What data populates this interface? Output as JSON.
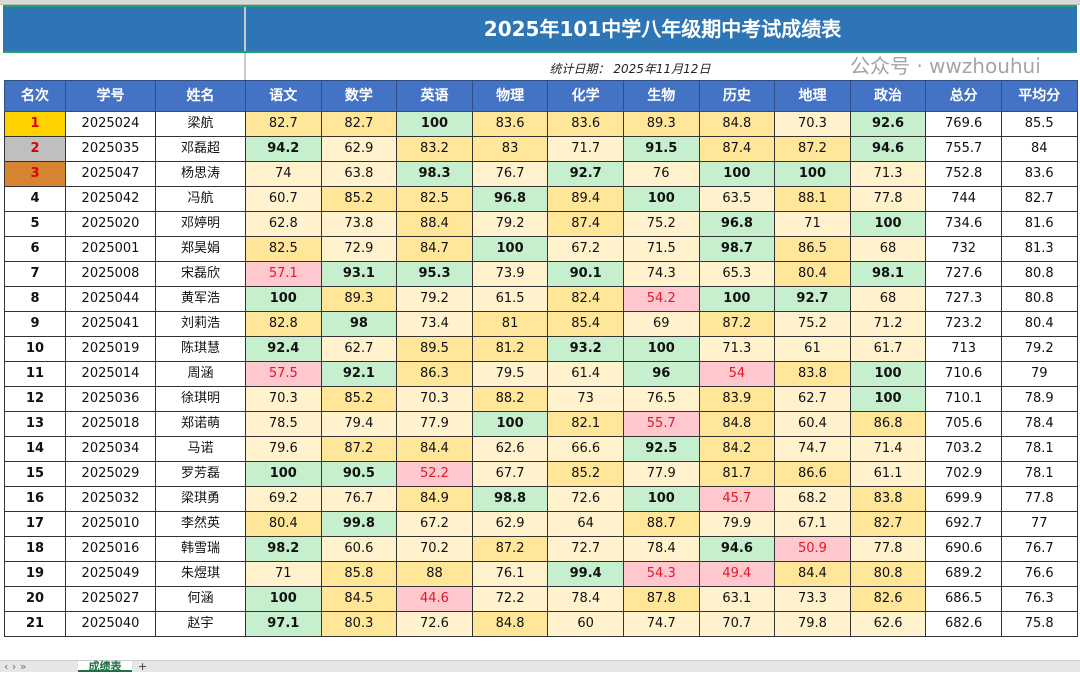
{
  "title": "2025年101中学八年级期中考试成绩表",
  "date_label": "统计日期：  2025年11月12日",
  "headers": [
    "名次",
    "学号",
    "姓名",
    "语文",
    "数学",
    "英语",
    "物理",
    "化学",
    "生物",
    "历史",
    "地理",
    "政治",
    "总分",
    "平均分"
  ],
  "rows": [
    [
      "1",
      "2025024",
      "梁航",
      "82.7",
      "82.7",
      "100",
      "83.6",
      "83.6",
      "89.3",
      "84.8",
      "70.3",
      "92.6",
      "769.6",
      "85.5"
    ],
    [
      "2",
      "2025035",
      "邓磊超",
      "94.2",
      "62.9",
      "83.2",
      "83",
      "71.7",
      "91.5",
      "87.4",
      "87.2",
      "94.6",
      "755.7",
      "84"
    ],
    [
      "3",
      "2025047",
      "杨思涛",
      "74",
      "63.8",
      "98.3",
      "76.7",
      "92.7",
      "76",
      "100",
      "100",
      "71.3",
      "752.8",
      "83.6"
    ],
    [
      "4",
      "2025042",
      "冯航",
      "60.7",
      "85.2",
      "82.5",
      "96.8",
      "89.4",
      "100",
      "63.5",
      "88.1",
      "77.8",
      "744",
      "82.7"
    ],
    [
      "5",
      "2025020",
      "邓婷明",
      "62.8",
      "73.8",
      "88.4",
      "79.2",
      "87.4",
      "75.2",
      "96.8",
      "71",
      "100",
      "734.6",
      "81.6"
    ],
    [
      "6",
      "2025001",
      "郑昊娟",
      "82.5",
      "72.9",
      "84.7",
      "100",
      "67.2",
      "71.5",
      "98.7",
      "86.5",
      "68",
      "732",
      "81.3"
    ],
    [
      "7",
      "2025008",
      "宋磊欣",
      "57.1",
      "93.1",
      "95.3",
      "73.9",
      "90.1",
      "74.3",
      "65.3",
      "80.4",
      "98.1",
      "727.6",
      "80.8"
    ],
    [
      "8",
      "2025044",
      "黄军浩",
      "100",
      "89.3",
      "79.2",
      "61.5",
      "82.4",
      "54.2",
      "100",
      "92.7",
      "68",
      "727.3",
      "80.8"
    ],
    [
      "9",
      "2025041",
      "刘莉浩",
      "82.8",
      "98",
      "73.4",
      "81",
      "85.4",
      "69",
      "87.2",
      "75.2",
      "71.2",
      "723.2",
      "80.4"
    ],
    [
      "10",
      "2025019",
      "陈琪慧",
      "92.4",
      "62.7",
      "89.5",
      "81.2",
      "93.2",
      "100",
      "71.3",
      "61",
      "61.7",
      "713",
      "79.2"
    ],
    [
      "11",
      "2025014",
      "周涵",
      "57.5",
      "92.1",
      "86.3",
      "79.5",
      "61.4",
      "96",
      "54",
      "83.8",
      "100",
      "710.6",
      "79"
    ],
    [
      "12",
      "2025036",
      "徐琪明",
      "70.3",
      "85.2",
      "70.3",
      "88.2",
      "73",
      "76.5",
      "83.9",
      "62.7",
      "100",
      "710.1",
      "78.9"
    ],
    [
      "13",
      "2025018",
      "郑诺萌",
      "78.5",
      "79.4",
      "77.9",
      "100",
      "82.1",
      "55.7",
      "84.8",
      "60.4",
      "86.8",
      "705.6",
      "78.4"
    ],
    [
      "14",
      "2025034",
      "马诺",
      "79.6",
      "87.2",
      "84.4",
      "62.6",
      "66.6",
      "92.5",
      "84.2",
      "74.7",
      "71.4",
      "703.2",
      "78.1"
    ],
    [
      "15",
      "2025029",
      "罗芳磊",
      "100",
      "90.5",
      "52.2",
      "67.7",
      "85.2",
      "77.9",
      "81.7",
      "86.6",
      "61.1",
      "702.9",
      "78.1"
    ],
    [
      "16",
      "2025032",
      "梁琪勇",
      "69.2",
      "76.7",
      "84.9",
      "98.8",
      "72.6",
      "100",
      "45.7",
      "68.2",
      "83.8",
      "699.9",
      "77.8"
    ],
    [
      "17",
      "2025010",
      "李然英",
      "80.4",
      "99.8",
      "67.2",
      "62.9",
      "64",
      "88.7",
      "79.9",
      "67.1",
      "82.7",
      "692.7",
      "77"
    ],
    [
      "18",
      "2025016",
      "韩雪瑞",
      "98.2",
      "60.6",
      "70.2",
      "87.2",
      "72.7",
      "78.4",
      "94.6",
      "50.9",
      "77.8",
      "690.6",
      "76.7"
    ],
    [
      "19",
      "2025049",
      "朱煜琪",
      "71",
      "85.8",
      "88",
      "76.1",
      "99.4",
      "54.3",
      "49.4",
      "84.4",
      "80.8",
      "689.2",
      "76.6"
    ],
    [
      "20",
      "2025027",
      "何涵",
      "100",
      "84.5",
      "44.6",
      "72.2",
      "78.4",
      "87.8",
      "63.1",
      "73.3",
      "82.6",
      "686.5",
      "76.3"
    ],
    [
      "21",
      "2025040",
      "赵宇",
      "97.1",
      "80.3",
      "72.6",
      "84.8",
      "60",
      "74.7",
      "70.7",
      "79.8",
      "62.6",
      "682.6",
      "75.8"
    ]
  ],
  "sheet_tab": "成绩表",
  "add_sheet": "+",
  "watermark": "公众号 · wwzhouhui",
  "colors": {
    "header": "#4472c4",
    "title": "#2e75b6",
    "high": "#c6efce",
    "good": "#ffe699",
    "mid": "#fff2cc",
    "low": "#ffc7ce"
  }
}
